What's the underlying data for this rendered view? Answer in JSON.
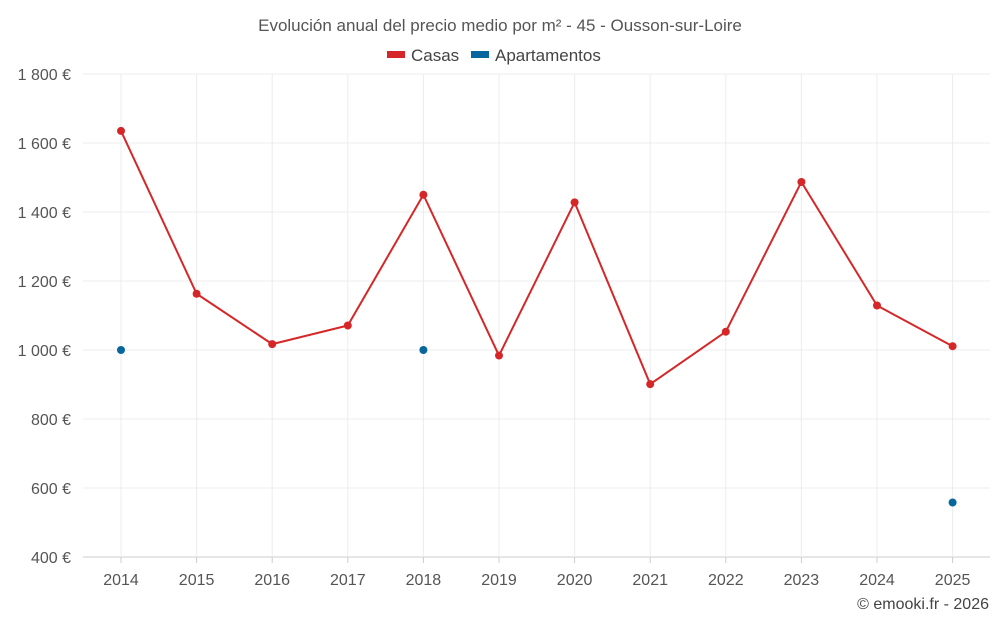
{
  "chart_data": {
    "type": "line",
    "title": "Evolución anual del precio medio por m² - 45 - Ousson-sur-Loire",
    "categories": [
      "2014",
      "2015",
      "2016",
      "2017",
      "2018",
      "2019",
      "2020",
      "2021",
      "2022",
      "2023",
      "2024",
      "2025"
    ],
    "ylim": [
      400,
      1800
    ],
    "yticks": [
      400,
      600,
      800,
      1000,
      1200,
      1400,
      1600,
      1800
    ],
    "ytick_labels": [
      "400 €",
      "600 €",
      "800 €",
      "1 000 €",
      "1 200 €",
      "1 400 €",
      "1 600 €",
      "1 800 €"
    ],
    "series": [
      {
        "name": "Casas",
        "color": "#d62728",
        "style": "line-markers",
        "values": [
          1635,
          1163,
          1017,
          1071,
          1450,
          984,
          1428,
          901,
          1053,
          1487,
          1129,
          1011
        ]
      },
      {
        "name": "Apartamentos",
        "color": "#08669e",
        "style": "markers",
        "values": [
          1000,
          null,
          null,
          null,
          1000,
          null,
          null,
          null,
          null,
          null,
          null,
          558
        ]
      }
    ],
    "grid": true,
    "legend": "top-center"
  },
  "credit": "© emooki.fr - 2026"
}
